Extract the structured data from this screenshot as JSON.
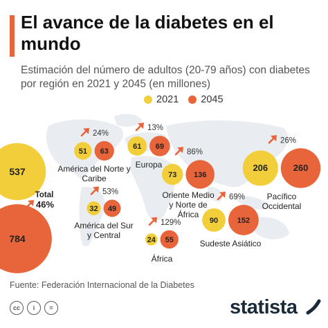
{
  "title": "El avance de la diabetes en el mundo",
  "subtitle": "Estimación del número de adultos (20-79 años) con diabetes por región en 2021 y 2045 (en millones)",
  "source": "Fuente: Federación Internacional de la Diabetes",
  "brand": "statista",
  "colors": {
    "y2021": "#f2cf3a",
    "y2045": "#e8643a",
    "accent": "#e8643a",
    "map": "#e9edf1",
    "arrow": "#e8643a"
  },
  "icons": [
    "creative-commons-icon",
    "attribution-icon",
    "no-derivatives-icon"
  ],
  "icon_glyphs": [
    "cc",
    "i",
    "="
  ],
  "chart_data": {
    "type": "bubble",
    "title": "El avance de la diabetes en el mundo",
    "subtitle": "Estimación del número de adultos (20-79 años) con diabetes por región en 2021 y 2045 (en millones)",
    "unit": "millones",
    "series": [
      {
        "name": "2021",
        "color": "#f2cf3a"
      },
      {
        "name": "2045",
        "color": "#e8643a"
      }
    ],
    "regions": [
      {
        "name": "América del Norte y Caribe",
        "v2021": 51,
        "v2045": 63,
        "change": "24%"
      },
      {
        "name": "Europa",
        "v2021": 61,
        "v2045": 69,
        "change": "13%"
      },
      {
        "name": "Oriente Medio y Norte de África",
        "v2021": 73,
        "v2045": 136,
        "change": "86%"
      },
      {
        "name": "Pacífico Occidental",
        "v2021": 206,
        "v2045": 260,
        "change": "26%"
      },
      {
        "name": "América del Sur y Central",
        "v2021": 32,
        "v2045": 49,
        "change": "53%"
      },
      {
        "name": "Sudeste Asiático",
        "v2021": 90,
        "v2045": 152,
        "change": "69%"
      },
      {
        "name": "África",
        "v2021": 24,
        "v2045": 55,
        "change": "129%"
      }
    ],
    "total": {
      "label": "Total",
      "v2021": 537,
      "v2045": 784,
      "change": "46%"
    }
  }
}
